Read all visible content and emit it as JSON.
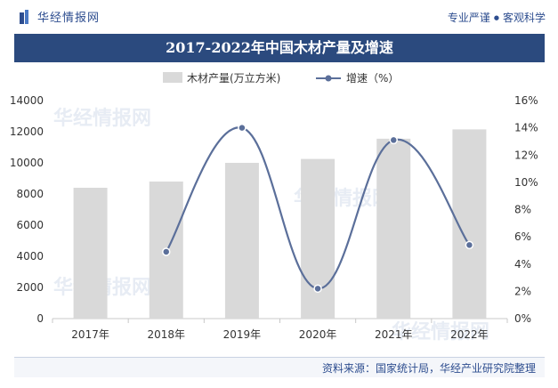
{
  "header": {
    "brand": "华经情报网",
    "slogan_left": "专业严谨",
    "slogan_sep": "●",
    "slogan_right": "客观科学"
  },
  "footer": {
    "source": "资料来源：国家统计局，华经产业研究院整理"
  },
  "colors": {
    "title_bg": "#2b4a7e",
    "bar": "#d9d9d9",
    "line": "#5b6f9a",
    "brand": "#2d4d8f"
  },
  "chart_data": {
    "type": "bar",
    "title": "2017-2022年中国木材产量及增速",
    "categories": [
      "2017年",
      "2018年",
      "2019年",
      "2020年",
      "2021年",
      "2022年"
    ],
    "series": [
      {
        "name": "木材产量(万立方米)",
        "type": "bar",
        "axis": "left",
        "values": [
          8400,
          8800,
          10000,
          10250,
          11550,
          12150
        ]
      },
      {
        "name": "增速（%）",
        "type": "line",
        "axis": "right",
        "values": [
          null,
          4.9,
          14.0,
          2.2,
          13.1,
          5.4
        ]
      }
    ],
    "ylim": [
      0,
      14000
    ],
    "yticks": [
      "0",
      "2000",
      "4000",
      "6000",
      "8000",
      "10000",
      "12000",
      "14000"
    ],
    "y2lim": [
      0,
      16
    ],
    "y2ticks": [
      "0%",
      "2%",
      "4%",
      "6%",
      "8%",
      "10%",
      "12%",
      "14%",
      "16%"
    ],
    "legend_position": "top",
    "grid": false
  }
}
